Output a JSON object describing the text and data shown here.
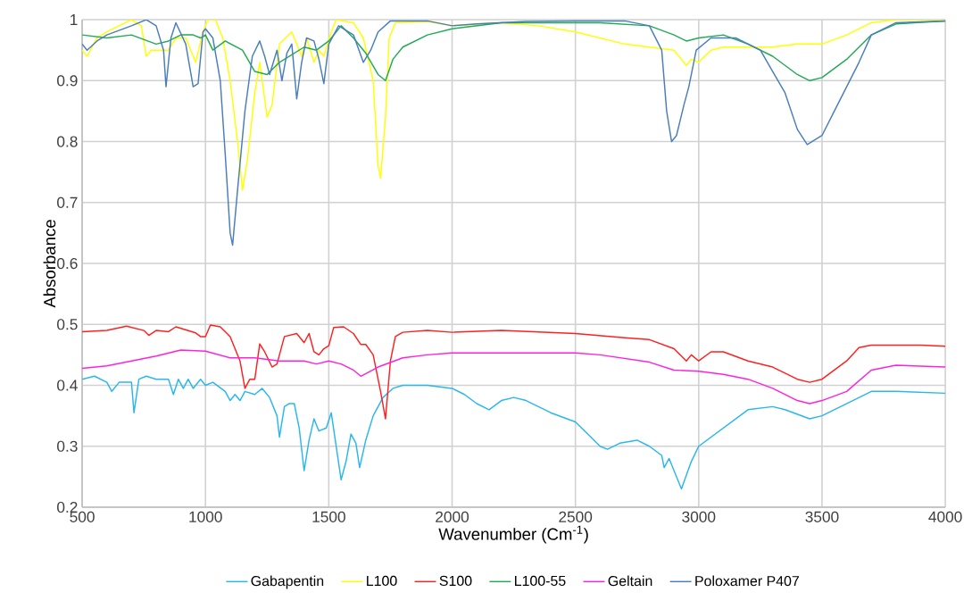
{
  "chart_data": {
    "type": "line",
    "xlabel": "Wavenumber (Cm$^{-1}$)",
    "ylabel": "Absorbance",
    "xlim": [
      500,
      4000
    ],
    "ylim": [
      0.2,
      1
    ],
    "xticks": [
      500,
      1000,
      1500,
      2000,
      2500,
      3000,
      3500,
      4000
    ],
    "yticks": [
      0.2,
      0.3,
      0.4,
      0.5,
      0.6,
      0.7,
      0.8,
      0.9,
      1
    ],
    "grid": true,
    "legend": "bottom",
    "marker": "none",
    "line_style": "solid",
    "series": [
      {
        "name": "Gabapentin",
        "color": "#2ab7ee",
        "x": [
          500,
          550,
          600,
          620,
          650,
          700,
          710,
          730,
          760,
          800,
          850,
          870,
          890,
          910,
          930,
          950,
          980,
          1000,
          1030,
          1080,
          1100,
          1120,
          1140,
          1160,
          1200,
          1230,
          1260,
          1290,
          1300,
          1320,
          1340,
          1360,
          1380,
          1400,
          1420,
          1440,
          1460,
          1490,
          1510,
          1530,
          1550,
          1570,
          1590,
          1610,
          1625,
          1650,
          1680,
          1720,
          1760,
          1800,
          1900,
          2000,
          2050,
          2100,
          2150,
          2200,
          2250,
          2300,
          2400,
          2500,
          2550,
          2600,
          2630,
          2680,
          2750,
          2800,
          2850,
          2860,
          2880,
          2930,
          2970,
          3000,
          3100,
          3200,
          3300,
          3350,
          3450,
          3500,
          3600,
          3700,
          3800,
          4000
        ],
        "values": [
          0.41,
          0.415,
          0.405,
          0.39,
          0.405,
          0.405,
          0.355,
          0.41,
          0.415,
          0.41,
          0.41,
          0.385,
          0.41,
          0.395,
          0.41,
          0.395,
          0.41,
          0.4,
          0.405,
          0.39,
          0.375,
          0.385,
          0.375,
          0.39,
          0.385,
          0.395,
          0.38,
          0.35,
          0.315,
          0.365,
          0.37,
          0.37,
          0.33,
          0.26,
          0.31,
          0.345,
          0.325,
          0.33,
          0.355,
          0.3,
          0.245,
          0.275,
          0.32,
          0.305,
          0.265,
          0.31,
          0.35,
          0.38,
          0.395,
          0.4,
          0.4,
          0.395,
          0.385,
          0.37,
          0.36,
          0.375,
          0.38,
          0.375,
          0.355,
          0.34,
          0.32,
          0.3,
          0.295,
          0.305,
          0.31,
          0.3,
          0.285,
          0.265,
          0.28,
          0.23,
          0.275,
          0.3,
          0.33,
          0.36,
          0.365,
          0.36,
          0.345,
          0.35,
          0.37,
          0.39,
          0.39,
          0.387
        ]
      },
      {
        "name": "L100",
        "color": "#ffff00",
        "x": [
          500,
          520,
          560,
          600,
          700,
          740,
          760,
          780,
          850,
          880,
          920,
          960,
          990,
          1010,
          1040,
          1070,
          1100,
          1130,
          1150,
          1170,
          1200,
          1220,
          1250,
          1270,
          1300,
          1350,
          1390,
          1410,
          1440,
          1460,
          1480,
          1510,
          1530,
          1600,
          1640,
          1680,
          1700,
          1710,
          1730,
          1745,
          1770,
          1900,
          2000,
          2200,
          2350,
          2500,
          2700,
          2800,
          2900,
          2950,
          2970,
          3000,
          3050,
          3100,
          3300,
          3400,
          3500,
          3600,
          3700,
          3800,
          4000
        ],
        "values": [
          0.95,
          0.94,
          0.97,
          0.98,
          1.0,
          0.99,
          0.94,
          0.95,
          0.95,
          0.97,
          0.97,
          0.93,
          0.98,
          1.0,
          1.0,
          0.97,
          0.9,
          0.8,
          0.72,
          0.77,
          0.88,
          0.93,
          0.84,
          0.86,
          0.96,
          0.98,
          0.94,
          0.97,
          0.93,
          0.95,
          0.94,
          0.98,
          1.0,
          0.995,
          0.97,
          0.9,
          0.76,
          0.74,
          0.84,
          0.97,
          0.995,
          0.997,
          0.99,
          0.995,
          0.99,
          0.98,
          0.96,
          0.955,
          0.95,
          0.925,
          0.935,
          0.93,
          0.95,
          0.955,
          0.955,
          0.96,
          0.96,
          0.975,
          0.995,
          1.0,
          1.0
        ]
      },
      {
        "name": "S100",
        "color": "#ff2020",
        "x": [
          500,
          600,
          680,
          750,
          770,
          800,
          850,
          880,
          960,
          980,
          1000,
          1020,
          1060,
          1100,
          1140,
          1160,
          1180,
          1200,
          1220,
          1240,
          1270,
          1290,
          1320,
          1370,
          1400,
          1420,
          1440,
          1460,
          1480,
          1500,
          1520,
          1560,
          1600,
          1630,
          1650,
          1680,
          1710,
          1730,
          1750,
          1770,
          1800,
          1900,
          2000,
          2200,
          2500,
          2700,
          2800,
          2900,
          2950,
          2970,
          3000,
          3050,
          3100,
          3200,
          3300,
          3400,
          3450,
          3500,
          3600,
          3650,
          3700,
          3900,
          4000
        ],
        "values": [
          0.488,
          0.49,
          0.497,
          0.49,
          0.482,
          0.49,
          0.488,
          0.496,
          0.486,
          0.48,
          0.48,
          0.499,
          0.496,
          0.48,
          0.44,
          0.395,
          0.41,
          0.41,
          0.468,
          0.455,
          0.43,
          0.435,
          0.48,
          0.485,
          0.47,
          0.485,
          0.455,
          0.45,
          0.46,
          0.465,
          0.495,
          0.496,
          0.485,
          0.467,
          0.467,
          0.45,
          0.39,
          0.345,
          0.44,
          0.48,
          0.487,
          0.49,
          0.487,
          0.49,
          0.485,
          0.478,
          0.475,
          0.46,
          0.44,
          0.45,
          0.44,
          0.455,
          0.455,
          0.44,
          0.43,
          0.41,
          0.405,
          0.41,
          0.44,
          0.462,
          0.466,
          0.466,
          0.464
        ]
      },
      {
        "name": "L100-55",
        "color": "#22aa55",
        "x": [
          500,
          600,
          700,
          800,
          850,
          900,
          950,
          980,
          1000,
          1030,
          1080,
          1150,
          1200,
          1250,
          1300,
          1400,
          1450,
          1500,
          1550,
          1600,
          1650,
          1700,
          1730,
          1760,
          1800,
          1900,
          2000,
          2200,
          2400,
          2600,
          2800,
          2900,
          2950,
          3000,
          3100,
          3200,
          3300,
          3400,
          3450,
          3500,
          3600,
          3700,
          3800,
          4000
        ],
        "values": [
          0.975,
          0.97,
          0.975,
          0.96,
          0.965,
          0.975,
          0.975,
          0.97,
          0.975,
          0.95,
          0.965,
          0.95,
          0.915,
          0.91,
          0.93,
          0.955,
          0.95,
          0.965,
          0.99,
          0.97,
          0.945,
          0.91,
          0.9,
          0.935,
          0.955,
          0.975,
          0.985,
          0.995,
          0.995,
          0.995,
          0.99,
          0.975,
          0.965,
          0.97,
          0.975,
          0.96,
          0.94,
          0.91,
          0.9,
          0.905,
          0.935,
          0.975,
          0.993,
          0.998
        ]
      },
      {
        "name": "Geltain",
        "color": "#ff22dd",
        "x": [
          500,
          600,
          700,
          800,
          900,
          1000,
          1100,
          1200,
          1300,
          1400,
          1450,
          1500,
          1550,
          1600,
          1630,
          1700,
          1800,
          1900,
          2000,
          2500,
          2600,
          2800,
          2900,
          3000,
          3100,
          3200,
          3300,
          3400,
          3450,
          3500,
          3600,
          3700,
          3800,
          4000
        ],
        "values": [
          0.428,
          0.432,
          0.44,
          0.448,
          0.458,
          0.456,
          0.445,
          0.445,
          0.44,
          0.44,
          0.435,
          0.44,
          0.435,
          0.425,
          0.415,
          0.43,
          0.445,
          0.45,
          0.453,
          0.453,
          0.45,
          0.438,
          0.425,
          0.423,
          0.418,
          0.41,
          0.395,
          0.375,
          0.37,
          0.375,
          0.39,
          0.425,
          0.433,
          0.43
        ]
      },
      {
        "name": "Poloxamer P407",
        "color": "#4a7ebb",
        "x": [
          500,
          520,
          560,
          600,
          700,
          760,
          800,
          830,
          840,
          860,
          880,
          920,
          950,
          970,
          990,
          1000,
          1030,
          1060,
          1080,
          1100,
          1110,
          1130,
          1160,
          1190,
          1220,
          1240,
          1260,
          1290,
          1310,
          1330,
          1350,
          1370,
          1390,
          1410,
          1440,
          1460,
          1480,
          1500,
          1540,
          1600,
          1640,
          1670,
          1700,
          1750,
          1900,
          2000,
          2100,
          2300,
          2500,
          2700,
          2800,
          2850,
          2870,
          2890,
          2910,
          2940,
          2960,
          2990,
          3050,
          3150,
          3250,
          3300,
          3350,
          3400,
          3440,
          3500,
          3550,
          3650,
          3700,
          3800,
          4000
        ],
        "values": [
          0.96,
          0.95,
          0.965,
          0.975,
          0.99,
          1.0,
          0.99,
          0.95,
          0.89,
          0.97,
          0.995,
          0.96,
          0.89,
          0.895,
          0.98,
          0.985,
          0.97,
          0.9,
          0.78,
          0.65,
          0.63,
          0.72,
          0.85,
          0.94,
          0.965,
          0.94,
          0.91,
          0.95,
          0.9,
          0.945,
          0.96,
          0.87,
          0.93,
          0.97,
          0.965,
          0.935,
          0.895,
          0.96,
          0.99,
          0.975,
          0.93,
          0.95,
          0.98,
          0.998,
          0.998,
          0.99,
          0.993,
          0.997,
          0.998,
          0.998,
          0.99,
          0.95,
          0.85,
          0.8,
          0.81,
          0.86,
          0.89,
          0.95,
          0.97,
          0.97,
          0.95,
          0.915,
          0.88,
          0.82,
          0.795,
          0.81,
          0.85,
          0.93,
          0.975,
          0.995,
          0.998
        ]
      }
    ]
  }
}
